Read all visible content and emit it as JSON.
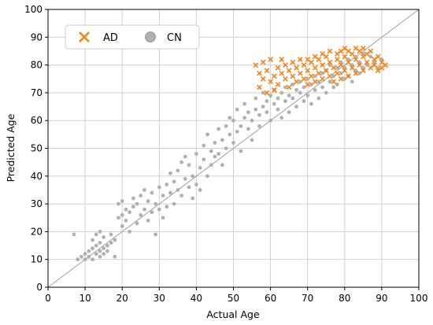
{
  "chart_data": {
    "type": "scatter",
    "title": "",
    "xlabel": "Actual Age",
    "ylabel": "Predicted Age",
    "xlim": [
      0,
      100
    ],
    "ylim": [
      0,
      100
    ],
    "xticks": [
      "0",
      "10",
      "20",
      "30",
      "40",
      "50",
      "60",
      "70",
      "80",
      "90",
      "100"
    ],
    "yticks": [
      "0",
      "10",
      "20",
      "30",
      "40",
      "50",
      "60",
      "70",
      "80",
      "90",
      "100"
    ],
    "grid": true,
    "legend_position": "top-left",
    "identity_line": {
      "from": [
        0,
        0
      ],
      "to": [
        100,
        100
      ],
      "color": "#9e9e9e"
    },
    "series": [
      {
        "name": "CN",
        "marker": "circle",
        "color": "#b0b0b0",
        "points": [
          [
            7,
            19
          ],
          [
            8,
            10
          ],
          [
            9,
            11
          ],
          [
            10,
            10
          ],
          [
            10,
            12
          ],
          [
            11,
            11
          ],
          [
            11,
            13
          ],
          [
            12,
            10
          ],
          [
            12,
            14
          ],
          [
            12,
            17
          ],
          [
            13,
            12
          ],
          [
            13,
            15
          ],
          [
            13,
            19
          ],
          [
            14,
            11
          ],
          [
            14,
            13
          ],
          [
            14,
            16
          ],
          [
            14,
            20
          ],
          [
            15,
            12
          ],
          [
            15,
            14
          ],
          [
            15,
            18
          ],
          [
            16,
            13
          ],
          [
            16,
            15
          ],
          [
            17,
            16
          ],
          [
            17,
            19
          ],
          [
            18,
            11
          ],
          [
            18,
            17
          ],
          [
            19,
            25
          ],
          [
            19,
            30
          ],
          [
            20,
            22
          ],
          [
            20,
            26
          ],
          [
            20,
            31
          ],
          [
            21,
            24
          ],
          [
            21,
            28
          ],
          [
            22,
            20
          ],
          [
            22,
            27
          ],
          [
            23,
            29
          ],
          [
            23,
            32
          ],
          [
            24,
            23
          ],
          [
            24,
            30
          ],
          [
            25,
            26
          ],
          [
            25,
            33
          ],
          [
            26,
            28
          ],
          [
            26,
            35
          ],
          [
            27,
            24
          ],
          [
            27,
            31
          ],
          [
            28,
            27
          ],
          [
            28,
            34
          ],
          [
            29,
            30
          ],
          [
            29,
            19
          ],
          [
            30,
            28
          ],
          [
            30,
            36
          ],
          [
            31,
            33
          ],
          [
            31,
            25
          ],
          [
            32,
            37
          ],
          [
            32,
            29
          ],
          [
            33,
            34
          ],
          [
            33,
            41
          ],
          [
            34,
            38
          ],
          [
            34,
            30
          ],
          [
            35,
            42
          ],
          [
            35,
            35
          ],
          [
            36,
            45
          ],
          [
            36,
            33
          ],
          [
            37,
            39
          ],
          [
            37,
            47
          ],
          [
            38,
            36
          ],
          [
            38,
            44
          ],
          [
            39,
            40
          ],
          [
            39,
            32
          ],
          [
            40,
            48
          ],
          [
            40,
            37
          ],
          [
            41,
            43
          ],
          [
            41,
            35
          ],
          [
            42,
            46
          ],
          [
            42,
            51
          ],
          [
            43,
            40
          ],
          [
            43,
            55
          ],
          [
            44,
            44
          ],
          [
            44,
            49
          ],
          [
            45,
            47
          ],
          [
            45,
            52
          ],
          [
            46,
            57
          ],
          [
            46,
            48
          ],
          [
            47,
            53
          ],
          [
            47,
            44
          ],
          [
            48,
            50
          ],
          [
            48,
            58
          ],
          [
            49,
            55
          ],
          [
            49,
            61
          ],
          [
            50,
            52
          ],
          [
            50,
            60
          ],
          [
            51,
            56
          ],
          [
            51,
            64
          ],
          [
            52,
            58
          ],
          [
            52,
            49
          ],
          [
            53,
            61
          ],
          [
            53,
            66
          ],
          [
            54,
            57
          ],
          [
            54,
            63
          ],
          [
            55,
            60
          ],
          [
            55,
            53
          ],
          [
            56,
            64
          ],
          [
            56,
            68
          ],
          [
            57,
            62
          ],
          [
            57,
            58
          ],
          [
            58,
            65
          ],
          [
            58,
            70
          ],
          [
            59,
            63
          ],
          [
            59,
            67
          ],
          [
            60,
            60
          ],
          [
            60,
            69
          ],
          [
            61,
            66
          ],
          [
            61,
            71
          ],
          [
            62,
            64
          ],
          [
            62,
            68
          ],
          [
            63,
            70
          ],
          [
            63,
            61
          ],
          [
            64,
            67
          ],
          [
            64,
            72
          ],
          [
            65,
            69
          ],
          [
            65,
            63
          ],
          [
            66,
            73
          ],
          [
            66,
            68
          ],
          [
            67,
            71
          ],
          [
            67,
            65
          ],
          [
            68,
            74
          ],
          [
            68,
            70
          ],
          [
            69,
            67
          ],
          [
            69,
            72
          ],
          [
            70,
            75
          ],
          [
            70,
            69
          ],
          [
            71,
            73
          ],
          [
            71,
            66
          ],
          [
            72,
            76
          ],
          [
            72,
            71
          ],
          [
            73,
            74
          ],
          [
            73,
            68
          ],
          [
            74,
            77
          ],
          [
            74,
            72
          ],
          [
            75,
            70
          ],
          [
            75,
            78
          ],
          [
            76,
            74
          ],
          [
            76,
            80
          ],
          [
            77,
            72
          ],
          [
            77,
            76
          ],
          [
            78,
            79
          ],
          [
            78,
            73
          ],
          [
            79,
            77
          ],
          [
            79,
            81
          ],
          [
            80,
            75
          ],
          [
            80,
            79
          ],
          [
            81,
            82
          ],
          [
            81,
            76
          ],
          [
            82,
            80
          ],
          [
            82,
            74
          ],
          [
            83,
            83
          ],
          [
            83,
            78
          ],
          [
            84,
            81
          ],
          [
            84,
            77
          ],
          [
            85,
            84
          ],
          [
            85,
            79
          ],
          [
            86,
            80
          ],
          [
            87,
            83
          ],
          [
            88,
            81
          ],
          [
            89,
            79
          ],
          [
            90,
            82
          ]
        ]
      },
      {
        "name": "AD",
        "marker": "x",
        "color": "#ff7f0e",
        "points": [
          [
            56,
            80
          ],
          [
            57,
            72
          ],
          [
            57,
            77
          ],
          [
            58,
            75
          ],
          [
            58,
            81
          ],
          [
            59,
            70
          ],
          [
            59,
            78
          ],
          [
            60,
            74
          ],
          [
            60,
            82
          ],
          [
            61,
            76
          ],
          [
            61,
            71
          ],
          [
            62,
            79
          ],
          [
            62,
            73
          ],
          [
            63,
            77
          ],
          [
            63,
            82
          ],
          [
            64,
            75
          ],
          [
            64,
            80
          ],
          [
            65,
            72
          ],
          [
            65,
            78
          ],
          [
            66,
            81
          ],
          [
            66,
            76
          ],
          [
            67,
            74
          ],
          [
            67,
            79
          ],
          [
            68,
            77
          ],
          [
            68,
            82
          ],
          [
            69,
            75
          ],
          [
            69,
            80
          ],
          [
            70,
            78
          ],
          [
            70,
            73
          ],
          [
            70,
            82
          ],
          [
            71,
            76
          ],
          [
            71,
            81
          ],
          [
            72,
            79
          ],
          [
            72,
            74
          ],
          [
            72,
            83
          ],
          [
            73,
            77
          ],
          [
            73,
            82
          ],
          [
            74,
            80
          ],
          [
            74,
            75
          ],
          [
            74,
            84
          ],
          [
            75,
            78
          ],
          [
            75,
            83
          ],
          [
            76,
            76
          ],
          [
            76,
            81
          ],
          [
            76,
            85
          ],
          [
            77,
            79
          ],
          [
            77,
            74
          ],
          [
            78,
            82
          ],
          [
            78,
            77
          ],
          [
            78,
            84
          ],
          [
            79,
            80
          ],
          [
            79,
            75
          ],
          [
            79,
            85
          ],
          [
            80,
            78
          ],
          [
            80,
            83
          ],
          [
            80,
            86
          ],
          [
            81,
            81
          ],
          [
            81,
            76
          ],
          [
            81,
            85
          ],
          [
            82,
            79
          ],
          [
            82,
            84
          ],
          [
            83,
            82
          ],
          [
            83,
            77
          ],
          [
            83,
            86
          ],
          [
            84,
            80
          ],
          [
            84,
            85
          ],
          [
            85,
            83
          ],
          [
            85,
            78
          ],
          [
            85,
            86
          ],
          [
            86,
            81
          ],
          [
            86,
            84
          ],
          [
            87,
            79
          ],
          [
            87,
            85
          ],
          [
            88,
            82
          ],
          [
            88,
            80
          ],
          [
            89,
            78
          ],
          [
            89,
            83
          ],
          [
            90,
            81
          ],
          [
            90,
            79
          ],
          [
            91,
            80
          ]
        ]
      }
    ]
  }
}
